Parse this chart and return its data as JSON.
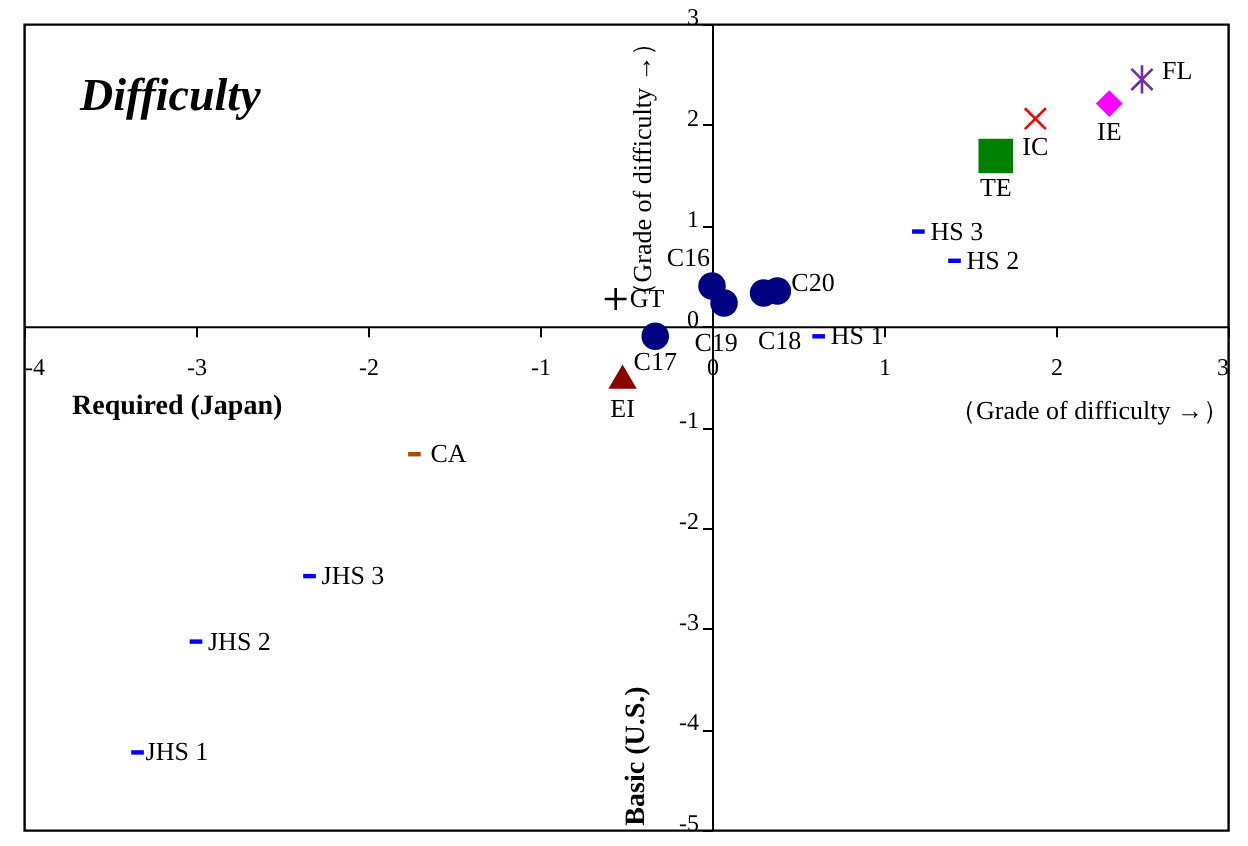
{
  "chart_data": {
    "type": "scatter",
    "title": "Difficulty",
    "xlabel": "（Grade of difficulty →）",
    "ylabel": "（Grade of difficulty →）",
    "annotations": [
      "Required (Japan)",
      "Basic (U.S.)"
    ],
    "grid": false,
    "xlim": [
      -4,
      3
    ],
    "xticks": [
      -4,
      -3,
      -2,
      -1,
      0,
      1,
      2,
      3
    ],
    "ylim": [
      -5,
      3
    ],
    "yticks": [
      -5,
      -4,
      -3,
      -2,
      -1,
      0,
      1,
      2,
      3
    ],
    "series": [
      {
        "name": "FL",
        "color": "#7030a0",
        "marker": "cross",
        "x": [
          2.5
        ],
        "values": [
          2.45
        ]
      },
      {
        "name": "IE",
        "color": "#ff00ff",
        "marker": "diamond",
        "x": [
          2.31
        ],
        "values": [
          2.21
        ]
      },
      {
        "name": "IC",
        "color": "#ff0000",
        "marker": "cross",
        "x": [
          1.88
        ],
        "values": [
          2.06
        ]
      },
      {
        "name": "TE",
        "color": "#008000",
        "marker": "square",
        "x": [
          1.65
        ],
        "values": [
          1.69
        ]
      },
      {
        "name": "HS 3",
        "color": "#0000ff",
        "marker": "square",
        "x": [
          1.2
        ],
        "values": [
          0.94
        ]
      },
      {
        "name": "HS 2",
        "color": "#0000ff",
        "marker": "square",
        "x": [
          1.41
        ],
        "values": [
          0.65
        ]
      },
      {
        "name": "HS 1",
        "color": "#0000ff",
        "marker": "square",
        "x": [
          0.62
        ],
        "values": [
          -0.1
        ]
      },
      {
        "name": "C16",
        "color": "#000080",
        "marker": "circle",
        "x": [
          0.0
        ],
        "values": [
          0.4
        ]
      },
      {
        "name": "C19",
        "color": "#000080",
        "marker": "circle",
        "x": [
          0.07
        ],
        "values": [
          0.23
        ]
      },
      {
        "name": "C18",
        "color": "#000080",
        "marker": "circle",
        "x": [
          0.3
        ],
        "values": [
          0.33
        ]
      },
      {
        "name": "C20",
        "color": "#000080",
        "marker": "circle",
        "x": [
          0.38
        ],
        "values": [
          0.35
        ]
      },
      {
        "name": "C17",
        "color": "#000080",
        "marker": "circle",
        "x": [
          -0.33
        ],
        "values": [
          -0.1
        ]
      },
      {
        "name": "GT",
        "color": "#000000",
        "marker": "cross",
        "x": [
          -0.56
        ],
        "values": [
          0.27
        ]
      },
      {
        "name": "EI",
        "color": "#8b0000",
        "marker": "triangle",
        "x": [
          -0.52
        ],
        "values": [
          -0.5
        ]
      },
      {
        "name": "CA",
        "color": "#b04a00",
        "marker": "square",
        "x": [
          -1.73
        ],
        "values": [
          -1.27
        ]
      },
      {
        "name": "JHS 3",
        "color": "#0000ff",
        "marker": "square",
        "x": [
          -2.34
        ],
        "values": [
          -2.48
        ]
      },
      {
        "name": "JHS 2",
        "color": "#0000ff",
        "marker": "square",
        "x": [
          -3.0
        ],
        "values": [
          -3.13
        ]
      },
      {
        "name": "JHS 1",
        "color": "#0000ff",
        "marker": "square",
        "x": [
          -3.34
        ],
        "values": [
          -4.23
        ]
      }
    ]
  }
}
